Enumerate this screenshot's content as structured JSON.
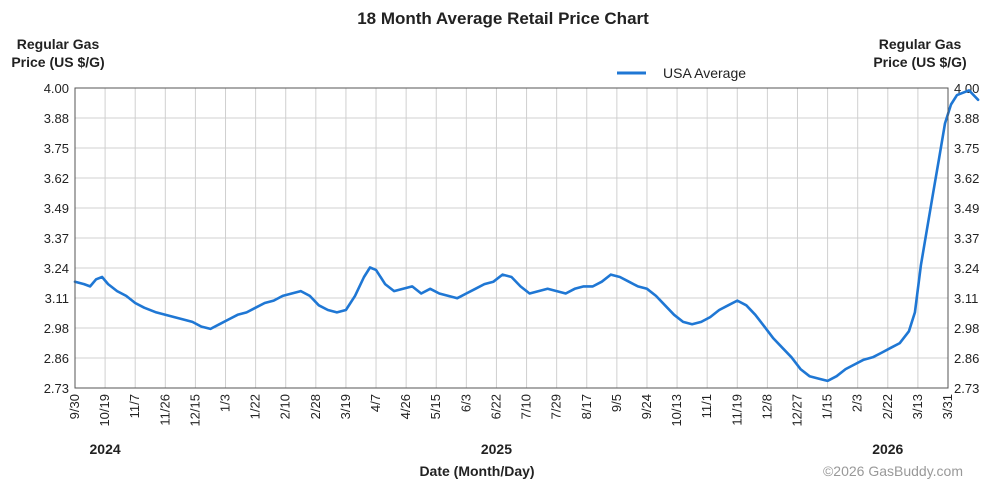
{
  "chart_data": {
    "type": "line",
    "title": "18 Month Average Retail Price Chart",
    "ylabel_left": [
      "Regular Gas",
      "Price (US $/G)"
    ],
    "ylabel_right": [
      "Regular Gas",
      "Price (US $/G)"
    ],
    "xlabel": "Date (Month/Day)",
    "ylim": [
      2.73,
      4.0
    ],
    "y_ticks": [
      "4.00",
      "3.88",
      "3.75",
      "3.62",
      "3.49",
      "3.37",
      "3.24",
      "3.11",
      "2.98",
      "2.86",
      "2.73"
    ],
    "x_ticks": [
      "9/30",
      "10/19",
      "11/7",
      "11/26",
      "12/15",
      "1/3",
      "1/22",
      "2/10",
      "2/28",
      "3/19",
      "4/7",
      "4/26",
      "5/15",
      "6/3",
      "6/22",
      "7/10",
      "7/29",
      "8/17",
      "9/5",
      "9/24",
      "10/13",
      "11/1",
      "11/19",
      "12/8",
      "12/27",
      "1/15",
      "2/3",
      "2/22",
      "3/13",
      "3/31"
    ],
    "years": [
      {
        "label": "2024",
        "tick_index": 1
      },
      {
        "label": "2025",
        "tick_index": 14
      },
      {
        "label": "2026",
        "tick_index": 27
      }
    ],
    "legend": {
      "label": "USA Average",
      "position": "top"
    },
    "series": [
      {
        "name": "USA Average",
        "color": "#1f77d4",
        "points": [
          [
            0,
            3.18
          ],
          [
            0.3,
            3.17
          ],
          [
            0.5,
            3.16
          ],
          [
            0.7,
            3.19
          ],
          [
            0.9,
            3.2
          ],
          [
            1.1,
            3.17
          ],
          [
            1.4,
            3.14
          ],
          [
            1.7,
            3.12
          ],
          [
            2.0,
            3.09
          ],
          [
            2.3,
            3.07
          ],
          [
            2.7,
            3.05
          ],
          [
            3.0,
            3.04
          ],
          [
            3.3,
            3.03
          ],
          [
            3.6,
            3.02
          ],
          [
            3.9,
            3.01
          ],
          [
            4.2,
            2.99
          ],
          [
            4.5,
            2.98
          ],
          [
            4.8,
            3.0
          ],
          [
            5.1,
            3.02
          ],
          [
            5.4,
            3.04
          ],
          [
            5.7,
            3.05
          ],
          [
            6.0,
            3.07
          ],
          [
            6.3,
            3.09
          ],
          [
            6.6,
            3.1
          ],
          [
            6.9,
            3.12
          ],
          [
            7.2,
            3.13
          ],
          [
            7.5,
            3.14
          ],
          [
            7.8,
            3.12
          ],
          [
            8.1,
            3.08
          ],
          [
            8.4,
            3.06
          ],
          [
            8.7,
            3.05
          ],
          [
            9.0,
            3.06
          ],
          [
            9.3,
            3.12
          ],
          [
            9.6,
            3.2
          ],
          [
            9.8,
            3.24
          ],
          [
            10.0,
            3.23
          ],
          [
            10.3,
            3.17
          ],
          [
            10.6,
            3.14
          ],
          [
            10.9,
            3.15
          ],
          [
            11.2,
            3.16
          ],
          [
            11.5,
            3.13
          ],
          [
            11.8,
            3.15
          ],
          [
            12.1,
            3.13
          ],
          [
            12.4,
            3.12
          ],
          [
            12.7,
            3.11
          ],
          [
            13.0,
            3.13
          ],
          [
            13.3,
            3.15
          ],
          [
            13.6,
            3.17
          ],
          [
            13.9,
            3.18
          ],
          [
            14.2,
            3.21
          ],
          [
            14.5,
            3.2
          ],
          [
            14.8,
            3.16
          ],
          [
            15.1,
            3.13
          ],
          [
            15.4,
            3.14
          ],
          [
            15.7,
            3.15
          ],
          [
            16.0,
            3.14
          ],
          [
            16.3,
            3.13
          ],
          [
            16.6,
            3.15
          ],
          [
            16.9,
            3.16
          ],
          [
            17.2,
            3.16
          ],
          [
            17.5,
            3.18
          ],
          [
            17.8,
            3.21
          ],
          [
            18.1,
            3.2
          ],
          [
            18.4,
            3.18
          ],
          [
            18.7,
            3.16
          ],
          [
            19.0,
            3.15
          ],
          [
            19.3,
            3.12
          ],
          [
            19.6,
            3.08
          ],
          [
            19.9,
            3.04
          ],
          [
            20.2,
            3.01
          ],
          [
            20.5,
            3.0
          ],
          [
            20.8,
            3.01
          ],
          [
            21.1,
            3.03
          ],
          [
            21.4,
            3.06
          ],
          [
            21.7,
            3.08
          ],
          [
            22.0,
            3.1
          ],
          [
            22.3,
            3.08
          ],
          [
            22.6,
            3.04
          ],
          [
            22.9,
            2.99
          ],
          [
            23.2,
            2.94
          ],
          [
            23.5,
            2.9
          ],
          [
            23.8,
            2.86
          ],
          [
            24.1,
            2.81
          ],
          [
            24.4,
            2.78
          ],
          [
            24.7,
            2.77
          ],
          [
            25.0,
            2.76
          ],
          [
            25.3,
            2.78
          ],
          [
            25.6,
            2.81
          ],
          [
            25.9,
            2.83
          ],
          [
            26.2,
            2.85
          ],
          [
            26.5,
            2.86
          ],
          [
            26.8,
            2.88
          ],
          [
            27.1,
            2.9
          ],
          [
            27.4,
            2.92
          ],
          [
            27.7,
            2.97
          ],
          [
            27.9,
            3.05
          ],
          [
            28.1,
            3.25
          ],
          [
            28.3,
            3.4
          ],
          [
            28.5,
            3.55
          ],
          [
            28.7,
            3.7
          ],
          [
            28.9,
            3.85
          ],
          [
            29.1,
            3.93
          ],
          [
            29.3,
            3.97
          ],
          [
            29.5,
            3.98
          ],
          [
            29.7,
            3.99
          ],
          [
            29.85,
            3.97
          ],
          [
            30,
            3.95
          ]
        ]
      }
    ]
  },
  "credit": "©2026 GasBuddy.com"
}
